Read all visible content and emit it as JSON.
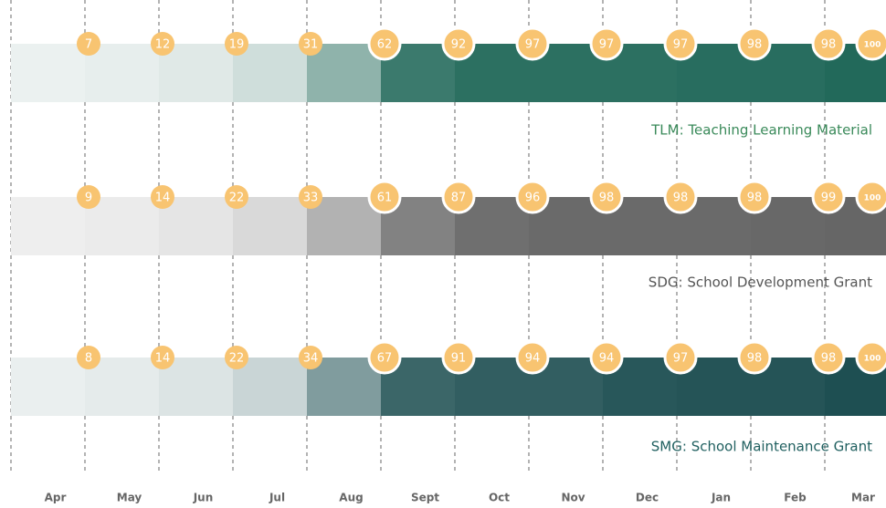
{
  "chart_data": {
    "type": "progress-strip",
    "categories": [
      "Apr",
      "May",
      "Jun",
      "Jul",
      "Aug",
      "Sept",
      "Oct",
      "Nov",
      "Dec",
      "Jan",
      "Feb",
      "Mar"
    ],
    "ylim": [
      0,
      100
    ],
    "series": [
      {
        "name": "TLM: Teaching Learning Material",
        "color": "#22695a",
        "light": "#eef3f2",
        "label_color": "#3a8a5a",
        "values": [
          7,
          12,
          19,
          31,
          62,
          92,
          97,
          97,
          97,
          98,
          98,
          100
        ]
      },
      {
        "name": "SDG: School Development Grant",
        "color": "#666666",
        "light": "#f1f1f1",
        "label_color": "#555555",
        "values": [
          9,
          14,
          22,
          33,
          61,
          87,
          96,
          98,
          98,
          98,
          99,
          100
        ]
      },
      {
        "name": "SMG: School  Maintenance Grant",
        "color": "#1e4f52",
        "light": "#eef2f2",
        "label_color": "#1f5f5f",
        "values": [
          8,
          14,
          22,
          34,
          67,
          91,
          94,
          94,
          97,
          98,
          98,
          100
        ]
      }
    ],
    "marker_color": "#f8c471"
  }
}
